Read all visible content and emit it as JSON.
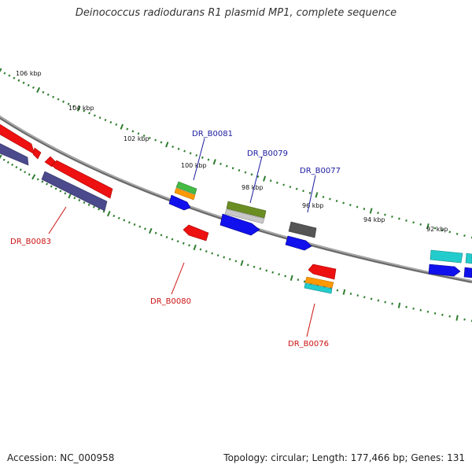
{
  "title": "Deinococcus radiodurans R1 plasmid MP1, complete sequence",
  "footer": {
    "accession": "Accession: NC_000958",
    "summary": "Topology: circular; Length: 177,466 bp; Genes: 131"
  },
  "ruler": {
    "tick_labels": [
      "106 kbp",
      "104 kbp",
      "102 kbp",
      "100 kbp",
      "98 kbp",
      "96 kbp",
      "94 kbp",
      "92 kbp"
    ]
  },
  "gene_labels": {
    "forward": [
      "DR_B0081",
      "DR_B0079",
      "DR_B0077"
    ],
    "reverse": [
      "DR_B0083",
      "DR_B0080",
      "DR_B0076"
    ]
  },
  "colors": {
    "forward_label": "#1a1aa0",
    "reverse_label": "#cc1111",
    "backbone": "#8a8a8a",
    "tick_green": "#2e7d2e",
    "cds_red": "#ee1111",
    "cds_blue": "#1111ee",
    "cds_navy": "#4a4a8c",
    "cds_green": "#44bb44",
    "cds_orange": "#ff9900",
    "cds_olive": "#6b8e23",
    "cds_grey": "#555555",
    "cds_silver": "#c8c8c8",
    "cds_cyan": "#22cccc"
  }
}
